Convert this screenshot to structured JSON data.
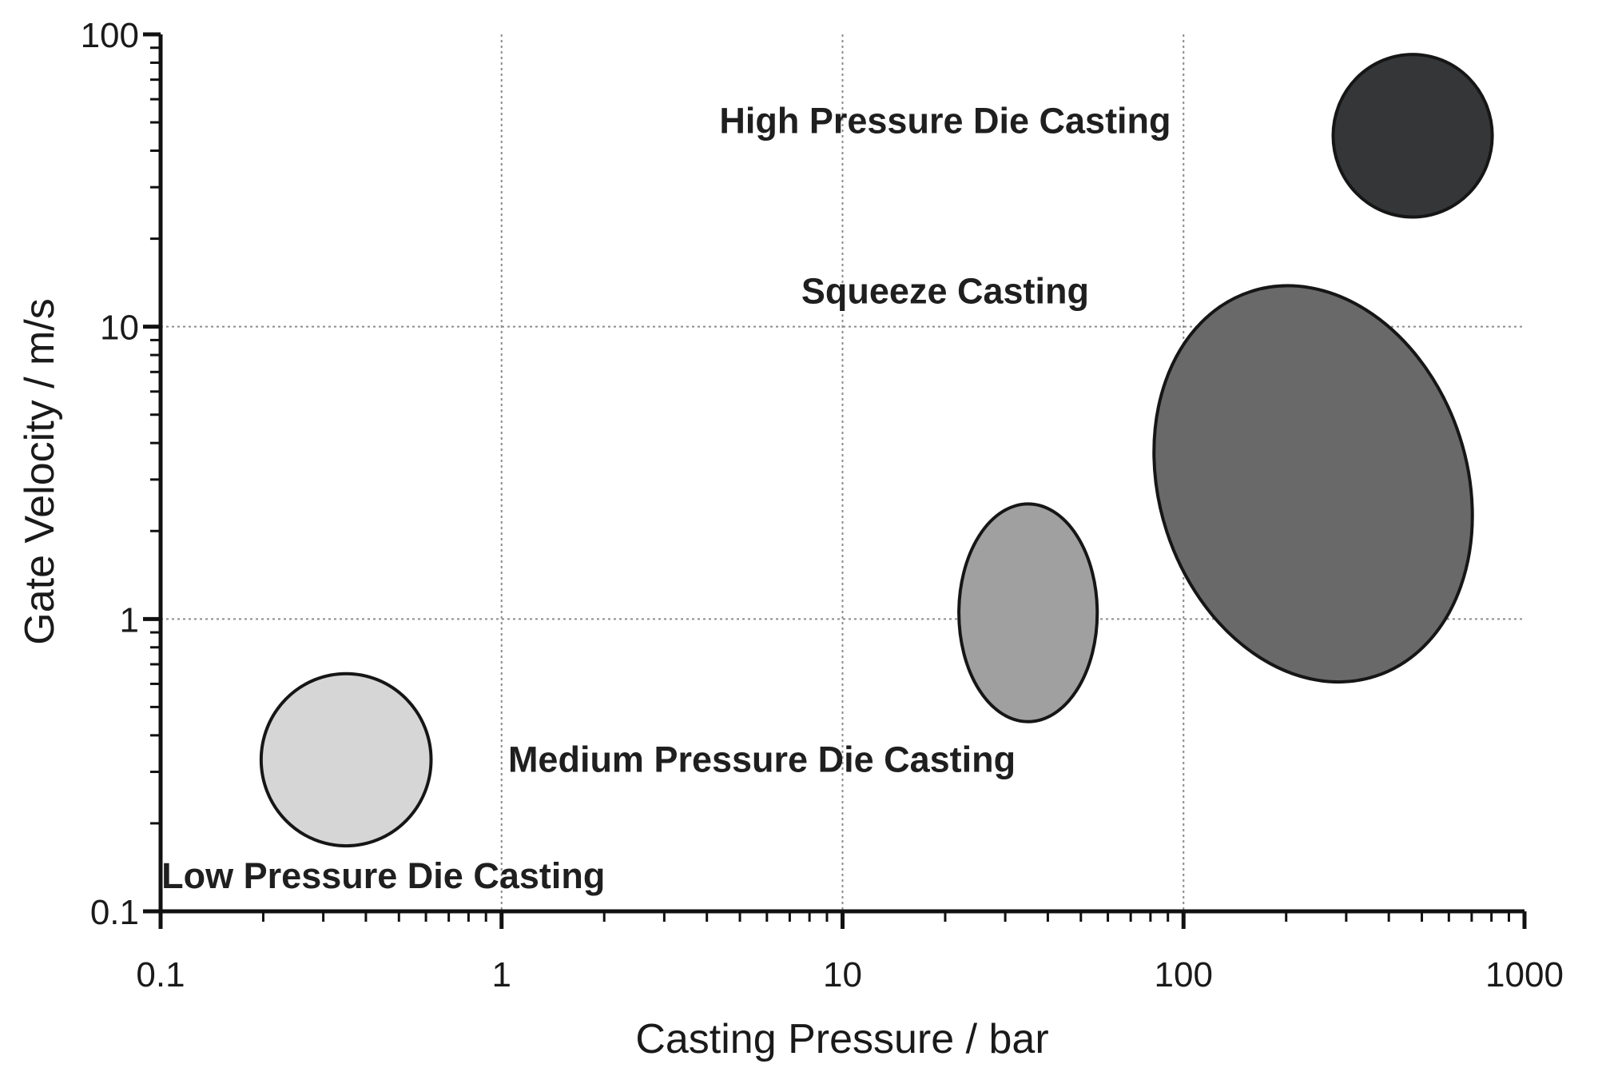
{
  "chart_data": {
    "type": "scatter",
    "title": "",
    "xlabel": "Casting Pressure / bar",
    "ylabel": "Gate Velocity / m/s",
    "xscale": "log",
    "yscale": "log",
    "xlim": [
      0.1,
      1000
    ],
    "ylim": [
      0.1,
      100
    ],
    "grid": true,
    "xticks": [
      {
        "value": 0.1,
        "label": "0.1"
      },
      {
        "value": 1,
        "label": "1"
      },
      {
        "value": 10,
        "label": "10"
      },
      {
        "value": 100,
        "label": "100"
      },
      {
        "value": 1000,
        "label": "1000"
      }
    ],
    "yticks": [
      {
        "value": 0.1,
        "label": "0.1"
      },
      {
        "value": 1,
        "label": "1"
      },
      {
        "value": 10,
        "label": "10"
      },
      {
        "value": 100,
        "label": "100"
      }
    ],
    "regions": [
      {
        "name": "Low Pressure Die Casting",
        "x_range": [
          0.2,
          0.63
        ],
        "y_range": [
          0.17,
          0.66
        ],
        "center": [
          0.35,
          0.33
        ],
        "tilt_deg": 0,
        "color": "#d6d6d6",
        "label_anchor": [
          0.45,
          0.12
        ]
      },
      {
        "name": "Medium Pressure Die Casting",
        "x_range": [
          22,
          56
        ],
        "y_range": [
          0.45,
          2.5
        ],
        "center": [
          35,
          1.05
        ],
        "tilt_deg": 0,
        "color": "#a0a0a0",
        "label_anchor": [
          5.8,
          0.3
        ]
      },
      {
        "name": "Squeeze Casting",
        "x_range": [
          100,
          800
        ],
        "y_range": [
          0.6,
          14.5
        ],
        "center": [
          240,
          2.9
        ],
        "tilt_deg": -18,
        "color": "#686968",
        "label_anchor": [
          20,
          12
        ]
      },
      {
        "name": "High Pressure Die Casting",
        "x_range": [
          280,
          820
        ],
        "y_range": [
          25,
          90
        ],
        "center": [
          470,
          45
        ],
        "tilt_deg": 0,
        "color": "#353637",
        "label_anchor": [
          20,
          46
        ]
      }
    ]
  }
}
